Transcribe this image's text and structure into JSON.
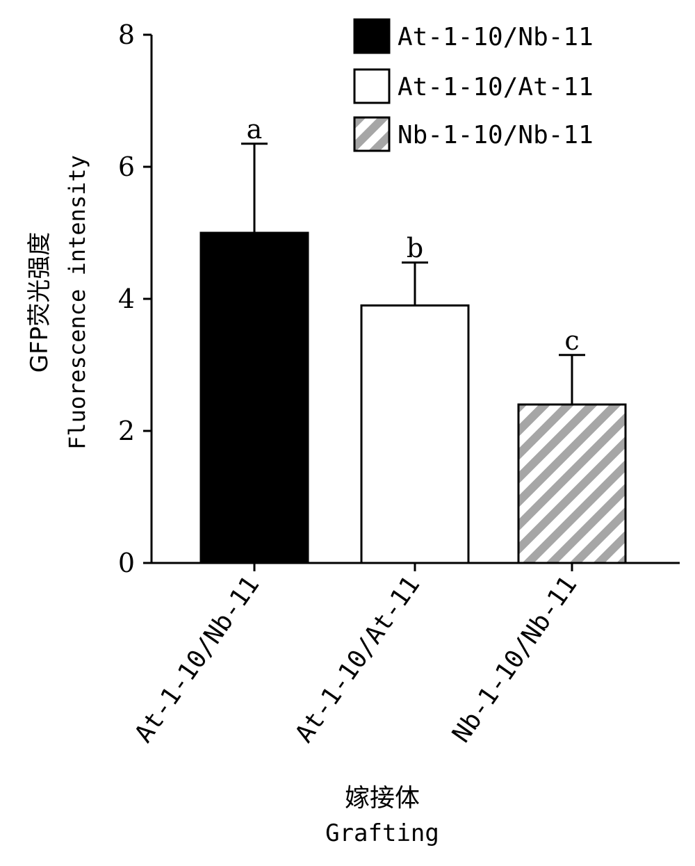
{
  "chart_data": {
    "type": "bar",
    "categories": [
      "At-1-10/Nb-11",
      "At-1-10/At-11",
      "Nb-1-10/Nb-11"
    ],
    "values": [
      5.0,
      3.9,
      2.4
    ],
    "errors": [
      1.35,
      0.65,
      0.75
    ],
    "significance": [
      "a",
      "b",
      "c"
    ],
    "fills": [
      "solid-black",
      "white",
      "gray-diagonal-hatch"
    ],
    "ylabel_cn": "GFP荧光强度",
    "ylabel": "Fluorescence intensity",
    "xlabel_cn": "嫁接体",
    "xlabel": "Grafting",
    "ylim": [
      0,
      8
    ],
    "yticks": [
      "0",
      "2",
      "4",
      "6",
      "8"
    ],
    "legend": [
      "At-1-10/Nb-11",
      "At-1-10/At-11",
      "Nb-1-10/Nb-11"
    ],
    "legend_position": "top-right",
    "grid": false,
    "colors": {
      "bar1": "#000000",
      "bar2": "#ffffff",
      "hatch": "#a6a6a6",
      "axis": "#000000"
    }
  }
}
